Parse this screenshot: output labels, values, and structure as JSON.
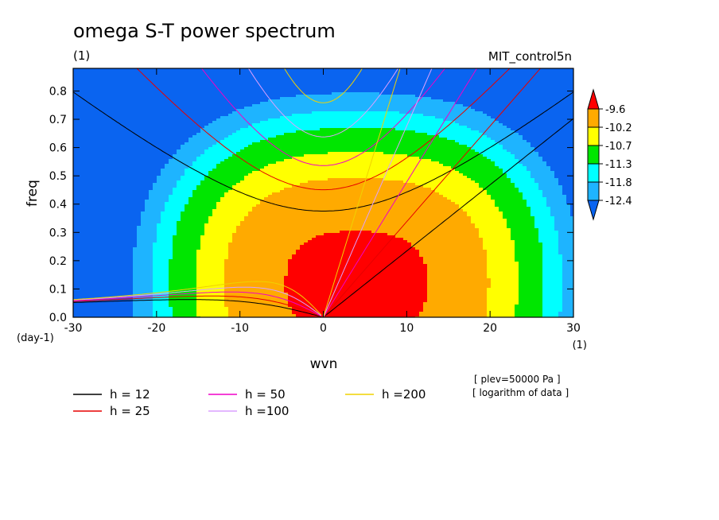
{
  "chart_data": {
    "type": "heatmap",
    "title": "omega S-T power spectrum",
    "subtitle_left": "(1)",
    "subtitle_right": "MIT_control5n",
    "xlabel": "wvn",
    "ylabel": "freq",
    "x_unit": "(1)",
    "y_unit": "(day-1)",
    "xlim": [
      -30,
      30
    ],
    "ylim": [
      0,
      0.88
    ],
    "x_ticks": [
      {
        "value": -30,
        "label": "-30"
      },
      {
        "value": -20,
        "label": "-20"
      },
      {
        "value": -10,
        "label": "-10"
      },
      {
        "value": 0,
        "label": "0"
      },
      {
        "value": 10,
        "label": "10"
      },
      {
        "value": 20,
        "label": "20"
      },
      {
        "value": 30,
        "label": "30"
      }
    ],
    "y_ticks": [
      {
        "value": 0.0,
        "label": "0.0"
      },
      {
        "value": 0.1,
        "label": "0.1"
      },
      {
        "value": 0.2,
        "label": "0.2"
      },
      {
        "value": 0.3,
        "label": "0.3"
      },
      {
        "value": 0.4,
        "label": "0.4"
      },
      {
        "value": 0.5,
        "label": "0.5"
      },
      {
        "value": 0.6,
        "label": "0.6"
      },
      {
        "value": 0.7,
        "label": "0.7"
      },
      {
        "value": 0.8,
        "label": "0.8"
      }
    ],
    "colorbar": {
      "labels": [
        "-9.6",
        "-10.2",
        "-10.7",
        "-11.3",
        "-11.8",
        "-12.4"
      ],
      "colors_low_to_high": [
        "#0a64f0",
        "#1eb4ff",
        "#00ffff",
        "#00e600",
        "#ffff00",
        "#ffaa00",
        "#ff0000"
      ]
    },
    "field_model": {
      "peak_wvn": 4,
      "peak_freq": 0.12,
      "peak_value": -9.45,
      "scale_wvn": 17.7,
      "scale_freq": 0.42
    },
    "dispersion_curves": [
      {
        "name": "h = 12",
        "h": 12,
        "color": "#000000"
      },
      {
        "name": "h = 25",
        "h": 25,
        "color": "#e60000"
      },
      {
        "name": "h = 50",
        "h": 50,
        "color": "#f000c8"
      },
      {
        "name": "h =100",
        "h": 100,
        "color": "#dca0ff"
      },
      {
        "name": "h =200",
        "h": 200,
        "color": "#f0d200"
      }
    ],
    "annotations": [
      "[ plev=50000 Pa ]",
      "[ logarithm of data ]"
    ]
  }
}
